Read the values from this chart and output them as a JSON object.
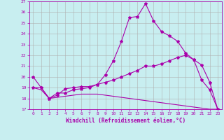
{
  "title": "",
  "xlabel": "Windchill (Refroidissement éolien,°C)",
  "ylabel": "",
  "background_color": "#c8eef0",
  "grid_color": "#b0b0b0",
  "line_color": "#aa00aa",
  "xlim": [
    -0.5,
    23.5
  ],
  "ylim": [
    17,
    27
  ],
  "x_ticks": [
    0,
    1,
    2,
    3,
    4,
    5,
    6,
    7,
    8,
    9,
    10,
    11,
    12,
    13,
    14,
    15,
    16,
    17,
    18,
    19,
    20,
    21,
    22,
    23
  ],
  "y_ticks": [
    17,
    18,
    19,
    20,
    21,
    22,
    23,
    24,
    25,
    26,
    27
  ],
  "line1_x": [
    0,
    1,
    2,
    3,
    4,
    5,
    6,
    7,
    8,
    9,
    10,
    11,
    12,
    13,
    14,
    15,
    16,
    17,
    18,
    19,
    20,
    21,
    22,
    23
  ],
  "line1_y": [
    20.0,
    19.0,
    18.0,
    18.5,
    18.5,
    18.8,
    18.9,
    19.0,
    19.3,
    20.2,
    21.5,
    23.3,
    25.5,
    25.6,
    26.8,
    25.2,
    24.2,
    23.8,
    23.3,
    22.2,
    21.6,
    19.7,
    18.8,
    17.0
  ],
  "line2_x": [
    0,
    1,
    2,
    3,
    4,
    5,
    6,
    7,
    8,
    9,
    10,
    11,
    12,
    13,
    14,
    15,
    16,
    17,
    18,
    19,
    20,
    21,
    22,
    23
  ],
  "line2_y": [
    19.0,
    19.0,
    18.0,
    18.3,
    18.9,
    19.0,
    19.1,
    19.1,
    19.3,
    19.5,
    19.7,
    20.0,
    20.3,
    20.6,
    21.0,
    21.0,
    21.2,
    21.5,
    21.8,
    22.0,
    21.6,
    21.1,
    19.5,
    17.0
  ],
  "line3_x": [
    0,
    1,
    2,
    3,
    4,
    5,
    6,
    7,
    8,
    9,
    10,
    11,
    12,
    13,
    14,
    15,
    16,
    17,
    18,
    19,
    20,
    21,
    22,
    23
  ],
  "line3_y": [
    19.0,
    18.8,
    18.0,
    18.1,
    18.2,
    18.3,
    18.4,
    18.4,
    18.4,
    18.3,
    18.2,
    18.1,
    18.0,
    17.9,
    17.8,
    17.7,
    17.6,
    17.5,
    17.4,
    17.3,
    17.2,
    17.1,
    17.0,
    17.0
  ],
  "marker": "*",
  "marker_size": 3,
  "line_width": 0.8,
  "tick_fontsize": 4.5,
  "label_fontsize": 5.5
}
